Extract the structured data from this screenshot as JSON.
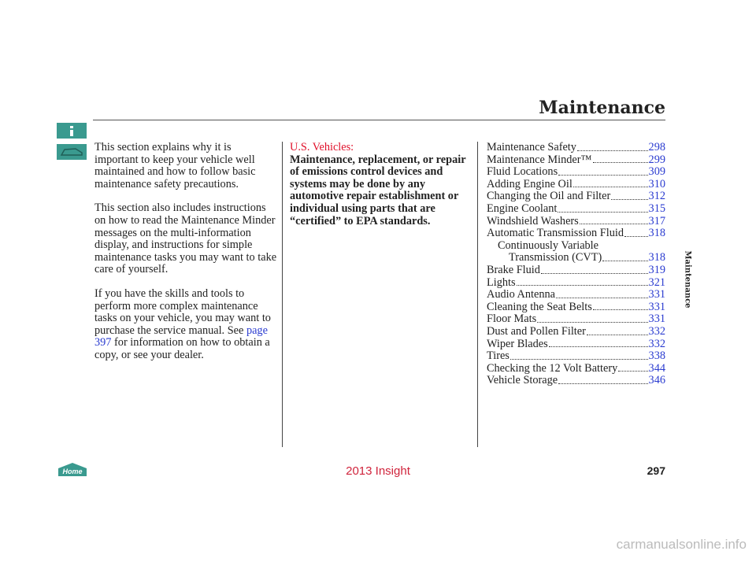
{
  "header": {
    "title": "Maintenance"
  },
  "side_tab": "Maintenance",
  "intro": {
    "paragraphs": [
      "This section explains why it is important to keep your vehicle well maintained and how to follow basic maintenance safety precautions.",
      "This section also includes instructions on how to read the Maintenance Minder messages on the multi-information display, and instructions for simple maintenance tasks you may want to take care of yourself."
    ],
    "last_paragraph": {
      "before": "If you have the skills and tools to perform more complex maintenance tasks on your vehicle, you may want to purchase the service manual. See",
      "link": "page 397",
      "after": "for information on how to obtain a copy, or see your dealer."
    }
  },
  "notice": {
    "heading": "U.S. Vehicles:",
    "text": "Maintenance, replacement, or repair of emissions control devices and systems may be done by any automotive repair establishment or individual using parts that are “certified” to EPA standards."
  },
  "contents": [
    {
      "label": "Maintenance Safety",
      "page": "298"
    },
    {
      "label": "Maintenance Minder™",
      "page": "299"
    },
    {
      "label": "Fluid Locations",
      "page": "309"
    },
    {
      "label": "Adding Engine Oil",
      "page": "310"
    },
    {
      "label": "Changing the Oil and Filter",
      "page": "312"
    },
    {
      "label": "Engine Coolant",
      "page": "315"
    },
    {
      "label": "Windshield Washers",
      "page": "317"
    },
    {
      "label": "Automatic Transmission Fluid",
      "page": "318"
    },
    {
      "label": [
        "Continuously Variable",
        "Transmission (CVT)"
      ],
      "page": "318"
    },
    {
      "label": "Brake Fluid",
      "page": "319"
    },
    {
      "label": "Lights",
      "page": "321"
    },
    {
      "label": "Audio Antenna",
      "page": "331"
    },
    {
      "label": "Cleaning the Seat Belts",
      "page": "331"
    },
    {
      "label": "Floor Mats",
      "page": "331"
    },
    {
      "label": "Dust and Pollen Filter",
      "page": "332"
    },
    {
      "label": "Wiper Blades",
      "page": "332"
    },
    {
      "label": "Tires",
      "page": "338"
    },
    {
      "label": "Checking the 12 Volt Battery",
      "page": "344"
    },
    {
      "label": "Vehicle Storage",
      "page": "346"
    }
  ],
  "footer": {
    "home": "Home",
    "model": "2013 Insight",
    "page_number": "297",
    "watermark": "carmanualsonline.info"
  }
}
